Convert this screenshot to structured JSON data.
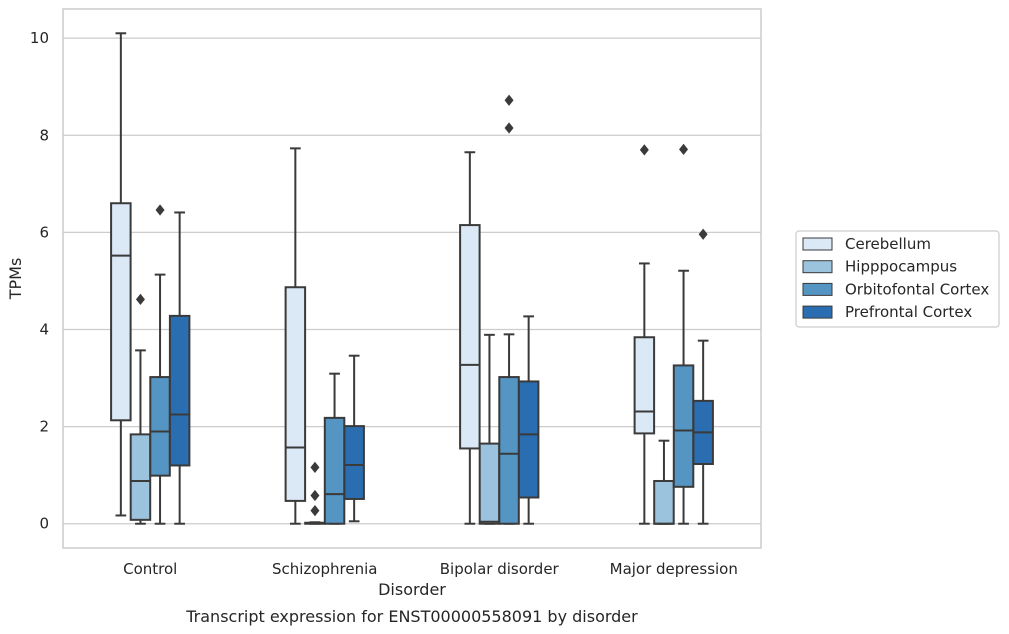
{
  "chart_data": {
    "type": "box",
    "title": "",
    "caption": "Transcript expression for ENST00000558091 by disorder",
    "xlabel": "Disorder",
    "ylabel": "TPMs",
    "ylim": [
      -0.5,
      10.6
    ],
    "yticks": [
      0,
      2,
      4,
      6,
      8,
      10
    ],
    "grid": true,
    "legend_position": "right",
    "categories": [
      "Control",
      "Schizophrenia",
      "Bipolar disorder",
      "Major depression"
    ],
    "series": [
      {
        "name": "Cerebellum",
        "color": "#dbe8f5",
        "boxes": [
          {
            "whislo": 0.17,
            "q1": 2.13,
            "med": 5.52,
            "q3": 6.6,
            "whishi": 10.1,
            "fliers": []
          },
          {
            "whislo": 0.0,
            "q1": 0.47,
            "med": 1.57,
            "q3": 4.87,
            "whishi": 7.73,
            "fliers": []
          },
          {
            "whislo": 0.0,
            "q1": 1.55,
            "med": 3.27,
            "q3": 6.15,
            "whishi": 7.65,
            "fliers": []
          },
          {
            "whislo": 0.0,
            "q1": 1.86,
            "med": 2.31,
            "q3": 3.84,
            "whishi": 5.36,
            "fliers": [
              7.7
            ]
          }
        ]
      },
      {
        "name": "Hipppocampus",
        "color": "#9cc3dd",
        "boxes": [
          {
            "whislo": 0.0,
            "q1": 0.08,
            "med": 0.88,
            "q3": 1.84,
            "whishi": 3.57,
            "fliers": [
              4.62
            ]
          },
          {
            "whislo": 0.0,
            "q1": 0.0,
            "med": 0.01,
            "q3": 0.02,
            "whishi": 0.03,
            "fliers": [
              0.27,
              0.58,
              1.16
            ]
          },
          {
            "whislo": 0.0,
            "q1": 0.0,
            "med": 0.04,
            "q3": 1.65,
            "whishi": 3.89,
            "fliers": []
          },
          {
            "whislo": 0.0,
            "q1": 0.0,
            "med": 0.0,
            "q3": 0.88,
            "whishi": 1.71,
            "fliers": []
          }
        ]
      },
      {
        "name": "Orbitofontal Cortex",
        "color": "#5595c4",
        "boxes": [
          {
            "whislo": 0.0,
            "q1": 0.99,
            "med": 1.9,
            "q3": 3.02,
            "whishi": 5.13,
            "fliers": [
              6.46
            ]
          },
          {
            "whislo": 0.0,
            "q1": 0.0,
            "med": 0.61,
            "q3": 2.18,
            "whishi": 3.09,
            "fliers": []
          },
          {
            "whislo": 0.0,
            "q1": 0.0,
            "med": 1.44,
            "q3": 3.02,
            "whishi": 3.9,
            "fliers": [
              8.15,
              8.72
            ]
          },
          {
            "whislo": 0.0,
            "q1": 0.76,
            "med": 1.92,
            "q3": 3.26,
            "whishi": 5.21,
            "fliers": [
              7.71
            ]
          }
        ]
      },
      {
        "name": "Prefrontal Cortex",
        "color": "#2a6eb1",
        "boxes": [
          {
            "whislo": 0.0,
            "q1": 1.2,
            "med": 2.25,
            "q3": 4.28,
            "whishi": 6.41,
            "fliers": []
          },
          {
            "whislo": 0.05,
            "q1": 0.51,
            "med": 1.21,
            "q3": 2.01,
            "whishi": 3.46,
            "fliers": []
          },
          {
            "whislo": 0.0,
            "q1": 0.54,
            "med": 1.84,
            "q3": 2.93,
            "whishi": 4.27,
            "fliers": []
          },
          {
            "whislo": 0.0,
            "q1": 1.23,
            "med": 1.88,
            "q3": 2.53,
            "whishi": 3.77,
            "fliers": [
              5.96
            ]
          }
        ]
      }
    ]
  }
}
